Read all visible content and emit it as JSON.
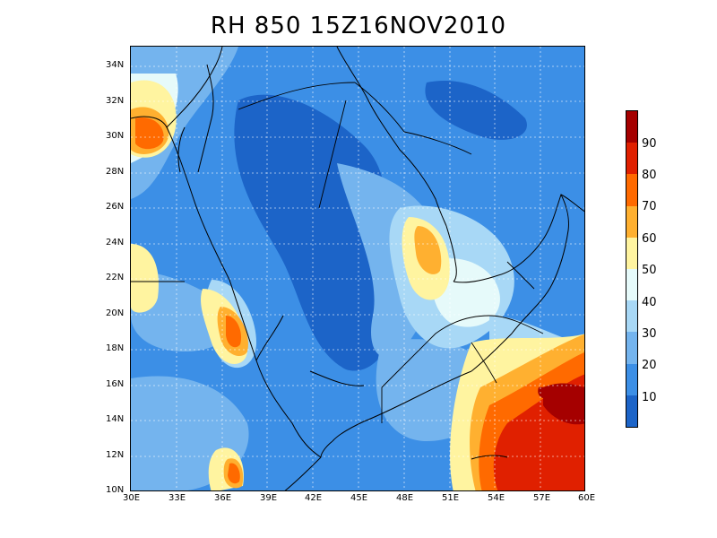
{
  "title": "RH 850  15Z16NOV2010",
  "map": {
    "lat_ticks": [
      "34N",
      "32N",
      "30N",
      "28N",
      "26N",
      "24N",
      "22N",
      "20N",
      "18N",
      "16N",
      "14N",
      "12N",
      "10N"
    ],
    "lon_ticks": [
      "30E",
      "33E",
      "36E",
      "39E",
      "42E",
      "45E",
      "48E",
      "51E",
      "54E",
      "57E",
      "60E"
    ],
    "extent": {
      "lon_min": 30,
      "lon_max": 60,
      "lat_min": 10,
      "lat_max": 35
    },
    "grid": true,
    "variable": "relative humidity",
    "level": "850"
  },
  "colorbar": {
    "labels": [
      "90",
      "80",
      "70",
      "60",
      "50",
      "40",
      "30",
      "20",
      "10"
    ],
    "colors": [
      "#a50000",
      "#e02000",
      "#ff6a00",
      "#ffb030",
      "#fff4a0",
      "#e6fafa",
      "#a8d8f6",
      "#74b4ee",
      "#3c8fe6",
      "#1c64c8"
    ]
  },
  "palette": {
    "lt10": "#1c64c8",
    "10_20": "#3c8fe6",
    "20_30": "#74b4ee",
    "30_40": "#a8d8f6",
    "40_50": "#e6fafa",
    "50_60": "#fff4a0",
    "60_70": "#ffb030",
    "70_80": "#ff6a00",
    "80_90": "#e02000",
    "gt90": "#a50000"
  }
}
